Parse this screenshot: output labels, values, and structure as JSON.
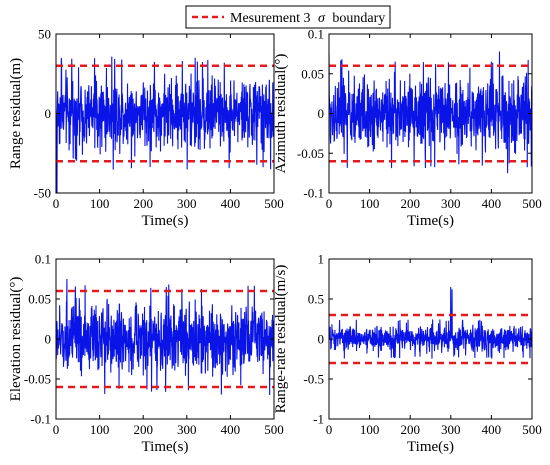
{
  "legend": {
    "label": "Mesurement 3",
    "symbol": "σ",
    "suffix": "boundary",
    "line_color": "#e8191e"
  },
  "series_color": "#0a14e6",
  "boundary_color": "#e8191e",
  "chart_data": [
    {
      "type": "line",
      "id": "range",
      "xlabel": "Time(s)",
      "ylabel": "Range residual(m)",
      "xlim": [
        0,
        500
      ],
      "ylim": [
        -50,
        50
      ],
      "xticks": [
        0,
        100,
        200,
        300,
        400,
        500
      ],
      "yticks": [
        -50,
        0,
        50
      ],
      "ytick_labels": [
        "-50",
        "0",
        "50"
      ],
      "boundary": 30,
      "noise_amplitude": 32,
      "spikes": [
        {
          "x": 2,
          "y": -50
        },
        {
          "x": 12,
          "y": 35
        },
        {
          "x": 290,
          "y": 33
        }
      ],
      "grid": false
    },
    {
      "type": "line",
      "id": "azimuth",
      "xlabel": "Time(s)",
      "ylabel": "Azimuth residual(°)",
      "xlim": [
        0,
        500
      ],
      "ylim": [
        -0.1,
        0.1
      ],
      "xticks": [
        0,
        100,
        200,
        300,
        400,
        500
      ],
      "yticks": [
        -0.1,
        -0.05,
        0,
        0.05,
        0.1
      ],
      "ytick_labels": [
        "-0.1",
        "-0.05",
        "0",
        "0.05",
        "0.1"
      ],
      "boundary": 0.06,
      "noise_amplitude": 0.062,
      "spikes": [
        {
          "x": 0,
          "y": 0.075
        },
        {
          "x": 420,
          "y": 0.078
        },
        {
          "x": 440,
          "y": -0.075
        }
      ],
      "grid": false
    },
    {
      "type": "line",
      "id": "elevation",
      "xlabel": "Time(s)",
      "ylabel": "Elevation residual(°)",
      "xlim": [
        0,
        500
      ],
      "ylim": [
        -0.1,
        0.1
      ],
      "xticks": [
        0,
        100,
        200,
        300,
        400,
        500
      ],
      "yticks": [
        -0.1,
        -0.05,
        0,
        0.05,
        0.1
      ],
      "ytick_labels": [
        "-0.1",
        "-0.05",
        "0",
        "0.05",
        "0.1"
      ],
      "boundary": 0.06,
      "noise_amplitude": 0.062,
      "spikes": [
        {
          "x": 25,
          "y": 0.075
        },
        {
          "x": 490,
          "y": -0.07
        }
      ],
      "grid": false
    },
    {
      "type": "line",
      "id": "range-rate",
      "xlabel": "Time(s)",
      "ylabel": "Range-rate residual(m/s)",
      "xlim": [
        0,
        500
      ],
      "ylim": [
        -1,
        1
      ],
      "xticks": [
        0,
        100,
        200,
        300,
        400,
        500
      ],
      "yticks": [
        -1,
        -0.5,
        0,
        0.5,
        1
      ],
      "ytick_labels": [
        "-1",
        "-0.5",
        "0",
        "0.5",
        "1"
      ],
      "boundary": 0.3,
      "noise_amplitude": 0.22,
      "spikes": [
        {
          "x": 300,
          "y": 0.65
        },
        {
          "x": 303,
          "y": 0.62
        }
      ],
      "grid": false
    }
  ]
}
